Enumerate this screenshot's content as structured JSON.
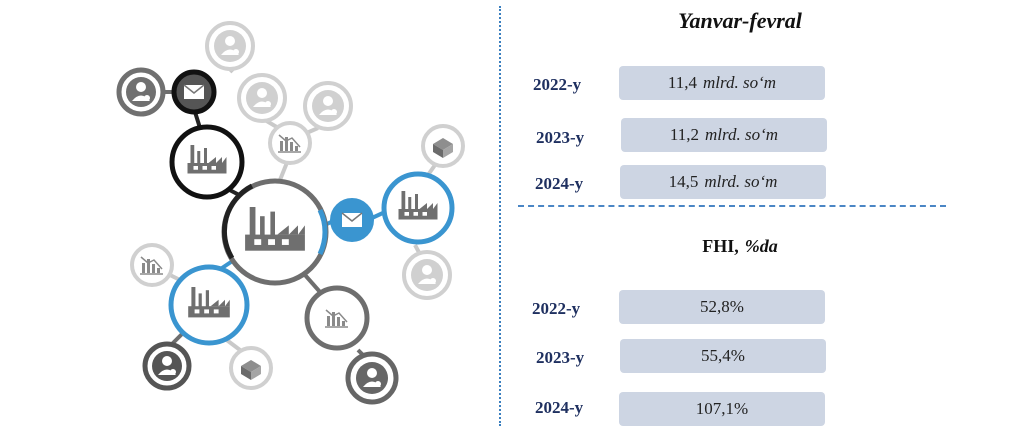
{
  "sections": [
    {
      "title": "Yanvar-fevral",
      "unit": "",
      "rows": [
        {
          "year": "2022-y",
          "value": "11,4",
          "unit": "mlrd. so‘m"
        },
        {
          "year": "2023-y",
          "value": "11,2",
          "unit": "mlrd. so‘m"
        },
        {
          "year": "2024-y",
          "value": "14,5",
          "unit": "mlrd. so‘m"
        }
      ]
    },
    {
      "title": "FHI,",
      "unit": "%da",
      "rows": [
        {
          "year": "2022-y",
          "value": "52,8%",
          "unit": ""
        },
        {
          "year": "2023-y",
          "value": "55,4%",
          "unit": ""
        },
        {
          "year": "2024-y",
          "value": "107,1%",
          "unit": ""
        }
      ]
    }
  ],
  "colors": {
    "accent_blue": "#3a95d0",
    "pill": "#cdd5e3",
    "year_text": "#1f3060",
    "dark_gray": "#707070",
    "light_gray": "#c9c9c9"
  },
  "icons": [
    "factory-icon",
    "envelope-icon",
    "user-icon",
    "chart-icon",
    "boxes-icon"
  ]
}
